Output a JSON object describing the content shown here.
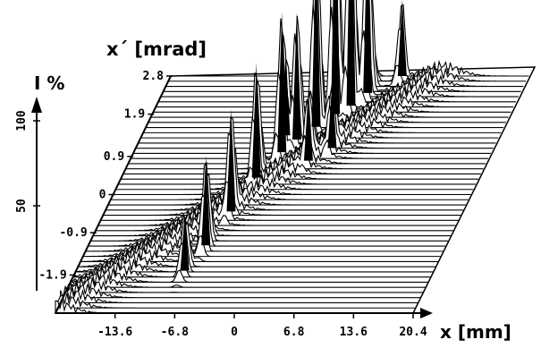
{
  "chart_data": {
    "type": "area",
    "title": "",
    "xlabel": "x [mm]",
    "ylabel": "x´ [mrad]",
    "zlabel": "I %",
    "x_ticks": [
      "-13.6",
      "-6.8",
      "0",
      "6.8",
      "13.6",
      "20.4"
    ],
    "y_ticks": [
      "-1.9",
      "-0.9",
      "0",
      "0.9",
      "1.9",
      "2.8"
    ],
    "z_ticks": [
      "50",
      "100"
    ],
    "xlim": [
      -20.4,
      20.4
    ],
    "ylim": [
      -2.8,
      2.8
    ],
    "zlim": [
      0,
      100
    ],
    "peaks": [
      {
        "x": 0.5,
        "y": 1.9,
        "z": 100
      },
      {
        "x": 1.8,
        "y": 2.1,
        "z": 95
      },
      {
        "x": -1.0,
        "y": 1.6,
        "z": 75
      },
      {
        "x": 3.0,
        "y": 2.4,
        "z": 70
      },
      {
        "x": -3.5,
        "y": 1.0,
        "z": 55
      },
      {
        "x": -2.5,
        "y": 1.3,
        "z": 50
      },
      {
        "x": -5.0,
        "y": 0.4,
        "z": 45
      },
      {
        "x": -6.0,
        "y": -0.4,
        "z": 40
      },
      {
        "x": -7.0,
        "y": -1.2,
        "z": 35
      },
      {
        "x": 6.0,
        "y": 2.8,
        "z": 30
      },
      {
        "x": -4.0,
        "y": 1.4,
        "z": 32
      },
      {
        "x": 0.0,
        "y": 0.8,
        "z": 28
      },
      {
        "x": 2.0,
        "y": 1.1,
        "z": 26
      },
      {
        "x": -8.0,
        "y": -1.8,
        "z": 22
      }
    ],
    "grid": false,
    "legend": "none"
  }
}
